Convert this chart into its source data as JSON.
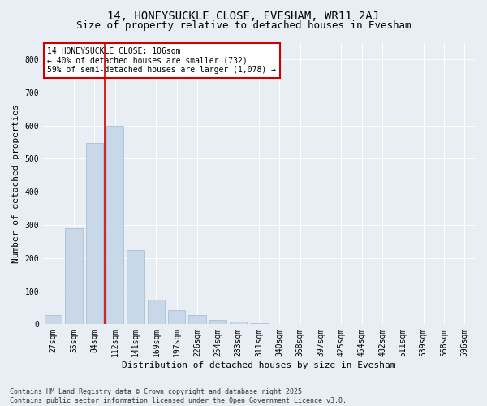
{
  "title_line1": "14, HONEYSUCKLE CLOSE, EVESHAM, WR11 2AJ",
  "title_line2": "Size of property relative to detached houses in Evesham",
  "xlabel": "Distribution of detached houses by size in Evesham",
  "ylabel": "Number of detached properties",
  "categories": [
    "27sqm",
    "55sqm",
    "84sqm",
    "112sqm",
    "141sqm",
    "169sqm",
    "197sqm",
    "226sqm",
    "254sqm",
    "283sqm",
    "311sqm",
    "340sqm",
    "368sqm",
    "397sqm",
    "425sqm",
    "454sqm",
    "482sqm",
    "511sqm",
    "539sqm",
    "568sqm",
    "596sqm"
  ],
  "values": [
    28,
    290,
    548,
    600,
    225,
    75,
    43,
    28,
    12,
    8,
    4,
    0,
    0,
    0,
    0,
    0,
    0,
    0,
    0,
    0,
    0
  ],
  "bar_color": "#c8d8e8",
  "bar_edge_color": "#a0b8d0",
  "vline_position": 2.5,
  "vline_color": "#cc0000",
  "annotation_text": "14 HONEYSUCKLE CLOSE: 106sqm\n← 40% of detached houses are smaller (732)\n59% of semi-detached houses are larger (1,078) →",
  "annotation_box_facecolor": "#ffffff",
  "annotation_box_edgecolor": "#cc0000",
  "ylim": [
    0,
    850
  ],
  "yticks": [
    0,
    100,
    200,
    300,
    400,
    500,
    600,
    700,
    800
  ],
  "background_color": "#e8eef4",
  "plot_bg_color": "#e8eef4",
  "footer_text": "Contains HM Land Registry data © Crown copyright and database right 2025.\nContains public sector information licensed under the Open Government Licence v3.0.",
  "title_fontsize": 10,
  "subtitle_fontsize": 9,
  "tick_fontsize": 7,
  "axis_label_fontsize": 8,
  "annotation_fontsize": 7,
  "footer_fontsize": 6
}
